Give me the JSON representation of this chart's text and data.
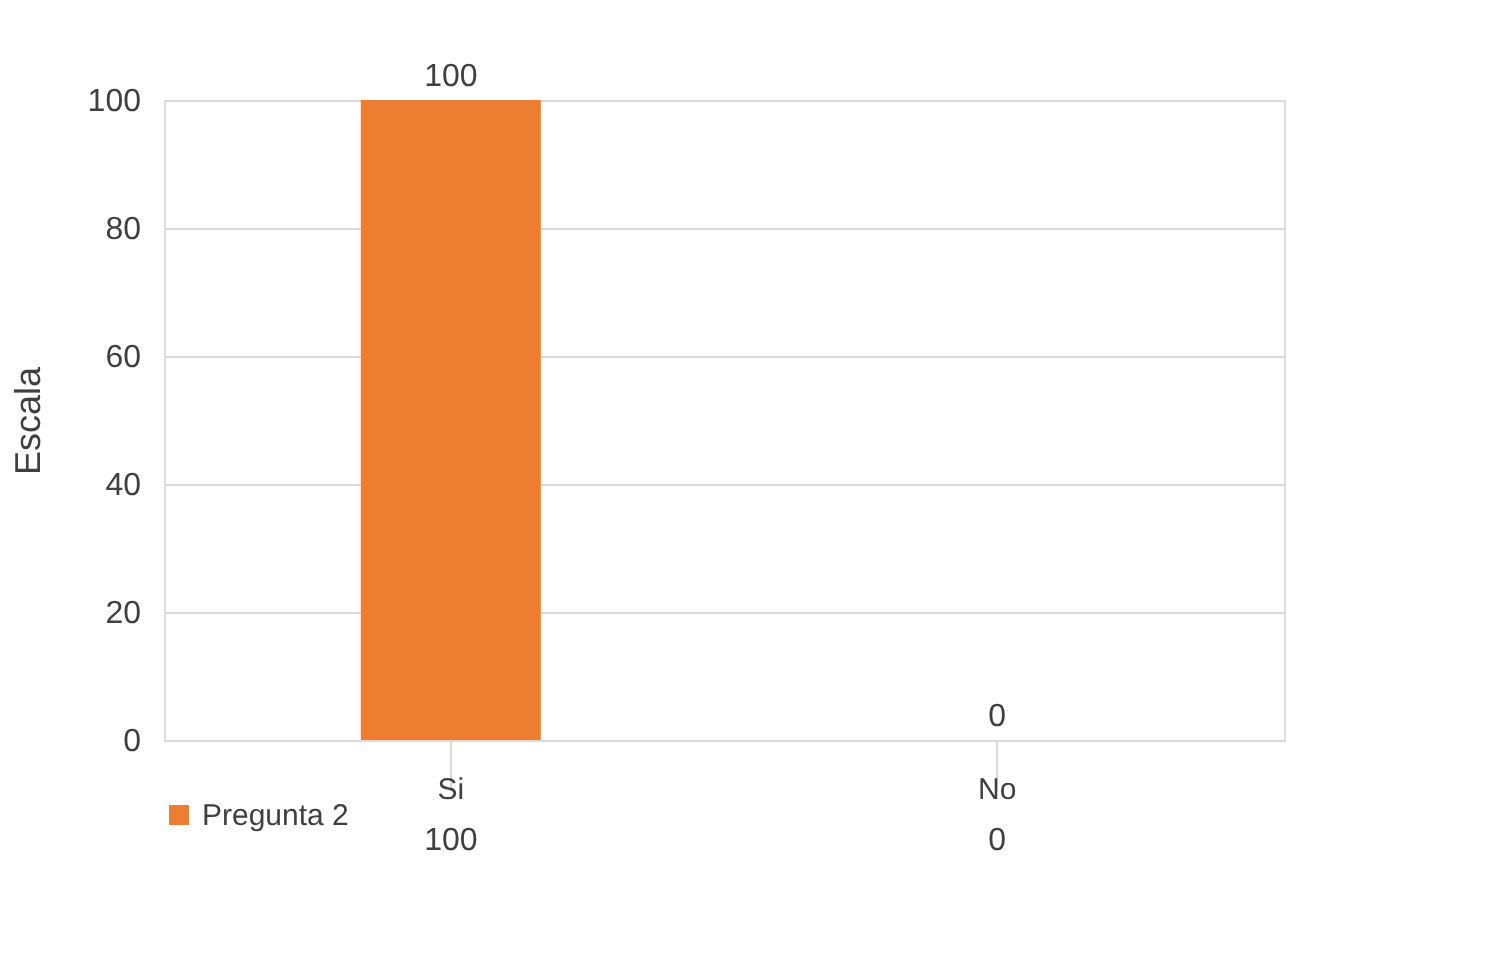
{
  "chart_data": {
    "type": "bar",
    "ylabel": "Escala",
    "categories": [
      "Si",
      "No"
    ],
    "series": [
      {
        "name": "Pregunta 2",
        "color": "#ed7d31",
        "values": [
          100,
          0
        ],
        "value_labels": [
          "100",
          "0"
        ]
      }
    ],
    "ylim": [
      0,
      100
    ],
    "yticks": [
      0,
      20,
      40,
      60,
      80,
      100
    ],
    "annotations": [
      "100",
      "0"
    ],
    "grid": "y",
    "legend": "bottom",
    "data_labels": true
  }
}
